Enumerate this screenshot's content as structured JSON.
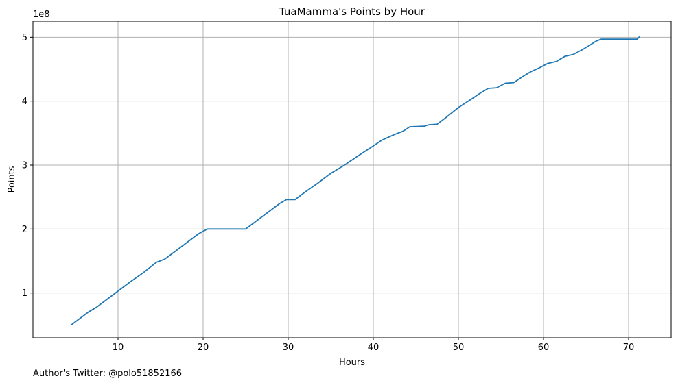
{
  "chart_data": {
    "type": "line",
    "title": "TuaMamma's Points by Hour",
    "xlabel": "Hours",
    "ylabel": "Points",
    "y_offset_label": "1e8",
    "xlim": [
      0,
      75
    ],
    "ylim": [
      0.3,
      5.25
    ],
    "y_scale_factor": 100000000,
    "xticks": [
      10,
      20,
      30,
      40,
      50,
      60,
      70
    ],
    "yticks": [
      1,
      2,
      3,
      4,
      5
    ],
    "xtick_labels": [
      "10",
      "20",
      "30",
      "40",
      "50",
      "60",
      "70"
    ],
    "ytick_labels": [
      "1",
      "2",
      "3",
      "4",
      "5"
    ],
    "grid": true,
    "line_color": "#1f77b4",
    "series": [
      {
        "x": [
          4.5,
          5.5,
          6.5,
          7.5,
          8.5,
          10,
          11.5,
          13,
          14.5,
          15.5,
          16.5,
          18,
          19.5,
          20.5,
          22,
          25,
          26,
          27.5,
          29,
          29.8,
          30.8,
          32,
          33.5,
          35,
          36.5,
          37.5,
          38.5,
          40,
          41,
          42.5,
          43.5,
          44.3,
          46,
          46.5,
          47.5,
          48.5,
          50,
          51.5,
          52.5,
          53.5,
          54.5,
          55.5,
          56.5,
          57.5,
          58.5,
          59.5,
          60.5,
          61.5,
          62.5,
          63.5,
          64.5,
          65.5,
          66.2,
          66.8,
          71,
          71.3
        ],
        "y": [
          0.5,
          0.6,
          0.7,
          0.78,
          0.88,
          1.03,
          1.18,
          1.32,
          1.48,
          1.53,
          1.63,
          1.78,
          1.93,
          2.0,
          2.0,
          2.0,
          2.1,
          2.25,
          2.4,
          2.46,
          2.46,
          2.58,
          2.72,
          2.87,
          2.99,
          3.08,
          3.17,
          3.3,
          3.39,
          3.48,
          3.53,
          3.6,
          3.61,
          3.63,
          3.64,
          3.74,
          3.9,
          4.03,
          4.12,
          4.2,
          4.21,
          4.28,
          4.29,
          4.38,
          4.46,
          4.52,
          4.59,
          4.62,
          4.7,
          4.73,
          4.8,
          4.88,
          4.94,
          4.97,
          4.97,
          5.01
        ]
      }
    ]
  },
  "footer": {
    "author_note": "Author's Twitter: @polo51852166"
  }
}
